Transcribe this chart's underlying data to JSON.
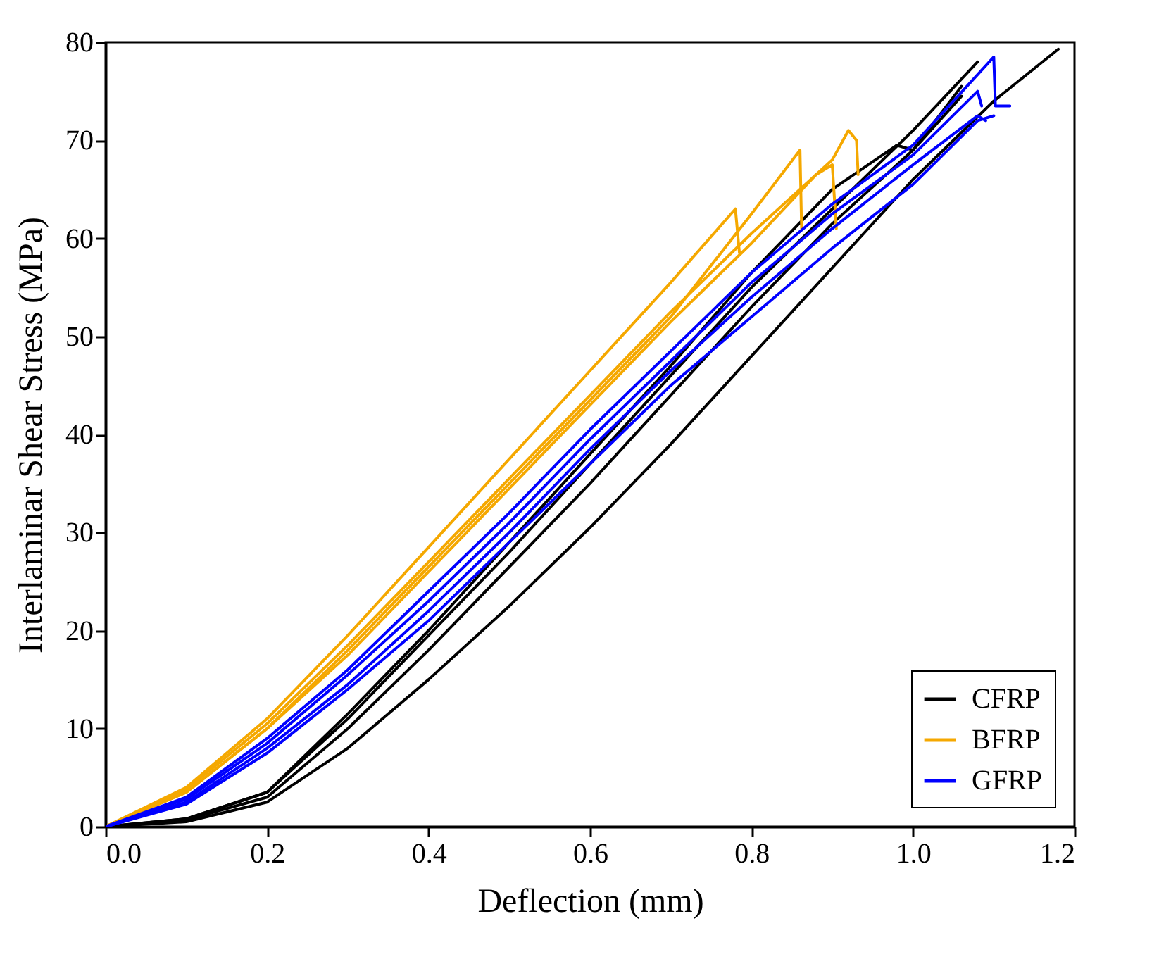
{
  "chart_data": {
    "type": "line",
    "xlabel": "Deflection (mm)",
    "ylabel": "Interlaminar Shear Stress (MPa)",
    "xlim": [
      0,
      1.2
    ],
    "xticks": [
      {
        "value": 0,
        "label": "0.0"
      },
      {
        "value": 0.2,
        "label": "0.2"
      },
      {
        "value": 0.4,
        "label": "0.4"
      },
      {
        "value": 0.6,
        "label": "0.6"
      },
      {
        "value": 0.8,
        "label": "0.8"
      },
      {
        "value": 1,
        "label": "1.0"
      },
      {
        "value": 1.2,
        "label": "1.2"
      }
    ],
    "ylim": [
      0,
      80
    ],
    "yticks": [
      0,
      10,
      20,
      30,
      40,
      50,
      60,
      70,
      80
    ],
    "grid": false,
    "legend": "bottom right",
    "line_style": "solid",
    "marker": "none",
    "series": [
      {
        "name": "CFRP",
        "color": "#000000",
        "x": [
          0,
          0.1,
          0.2,
          0.3,
          0.4,
          0.5,
          0.6,
          0.7,
          0.8,
          0.9,
          1.0,
          1.08
        ],
        "values": [
          0,
          0.8,
          3.5,
          11,
          19.5,
          28,
          37,
          46,
          55,
          63,
          71,
          78
        ]
      },
      {
        "color": "#000000",
        "x": [
          0,
          0.1,
          0.2,
          0.3,
          0.4,
          0.5,
          0.6,
          0.7,
          0.8,
          0.9,
          1.0,
          1.1,
          1.18
        ],
        "values": [
          0,
          0.5,
          2.5,
          8,
          15,
          22.5,
          30.5,
          39,
          48,
          57,
          66,
          74,
          79.3
        ]
      },
      {
        "color": "#000000",
        "x": [
          0,
          0.1,
          0.2,
          0.3,
          0.4,
          0.5,
          0.6,
          0.7,
          0.8,
          0.9,
          1.0,
          1.06
        ],
        "values": [
          0,
          0.7,
          3,
          10,
          18,
          26.5,
          35,
          44,
          53,
          61.5,
          69,
          74.5
        ]
      },
      {
        "color": "#000000",
        "x": [
          0,
          0.1,
          0.2,
          0.3,
          0.4,
          0.5,
          0.6,
          0.7,
          0.8,
          0.9,
          0.98,
          1.0,
          1.06
        ],
        "values": [
          0,
          0.8,
          3.5,
          11.5,
          20,
          29,
          38,
          47,
          56.5,
          65,
          69.5,
          69,
          75.5
        ]
      },
      {
        "name": "BFRP",
        "color": "#f5a800",
        "x": [
          0,
          0.1,
          0.2,
          0.3,
          0.4,
          0.5,
          0.6,
          0.7,
          0.78,
          0.785
        ],
        "values": [
          0,
          4,
          11,
          19.5,
          28.5,
          37.5,
          46.5,
          55.5,
          63,
          58.5
        ]
      },
      {
        "color": "#f5a800",
        "x": [
          0,
          0.1,
          0.2,
          0.3,
          0.4,
          0.5,
          0.6,
          0.7,
          0.8,
          0.86,
          0.862
        ],
        "values": [
          0,
          3.5,
          10,
          18,
          26.5,
          35,
          43.5,
          52,
          62.5,
          69,
          61
        ]
      },
      {
        "color": "#f5a800",
        "x": [
          0,
          0.1,
          0.2,
          0.3,
          0.4,
          0.5,
          0.6,
          0.7,
          0.8,
          0.88,
          0.9,
          0.905
        ],
        "values": [
          0,
          3.5,
          10,
          17.5,
          26,
          34.5,
          43,
          51.5,
          59.5,
          66.5,
          67.5,
          61
        ]
      },
      {
        "color": "#f5a800",
        "x": [
          0,
          0.1,
          0.2,
          0.3,
          0.4,
          0.5,
          0.6,
          0.7,
          0.8,
          0.9,
          0.92,
          0.93,
          0.932
        ],
        "values": [
          0,
          3.8,
          10.5,
          18.5,
          27,
          35.5,
          44,
          52.5,
          60.5,
          68,
          71,
          70,
          66.5
        ]
      },
      {
        "name": "GFRP",
        "color": "#0000ff",
        "x": [
          0,
          0.1,
          0.2,
          0.3,
          0.4,
          0.5,
          0.6,
          0.7,
          0.8,
          0.9,
          1.0,
          1.1,
          1.102,
          1.12
        ],
        "values": [
          0,
          3,
          9,
          16,
          24,
          32,
          40.5,
          48.5,
          56.5,
          63.5,
          69.5,
          78.5,
          73.5,
          73.5
        ]
      },
      {
        "color": "#0000ff",
        "x": [
          0,
          0.1,
          0.2,
          0.3,
          0.4,
          0.5,
          0.6,
          0.7,
          0.8,
          0.9,
          1.0,
          1.08,
          1.09
        ],
        "values": [
          0,
          2.5,
          8,
          14.5,
          22,
          30,
          38.5,
          46.5,
          54,
          61,
          67.5,
          72.5,
          72
        ]
      },
      {
        "color": "#0000ff",
        "x": [
          0,
          0.1,
          0.2,
          0.3,
          0.4,
          0.5,
          0.6,
          0.7,
          0.8,
          0.9,
          1.0,
          1.08,
          1.085
        ],
        "values": [
          0,
          2.8,
          8.5,
          15.5,
          23,
          31,
          39.5,
          47.5,
          55.5,
          62.5,
          68.5,
          75,
          73.5
        ]
      },
      {
        "color": "#0000ff",
        "x": [
          0,
          0.1,
          0.2,
          0.3,
          0.4,
          0.5,
          0.6,
          0.7,
          0.8,
          0.9,
          1.0,
          1.08,
          1.1
        ],
        "values": [
          0,
          2.3,
          7.5,
          14,
          21,
          29,
          37,
          45,
          52,
          59,
          65.5,
          72,
          72.5
        ]
      }
    ]
  }
}
